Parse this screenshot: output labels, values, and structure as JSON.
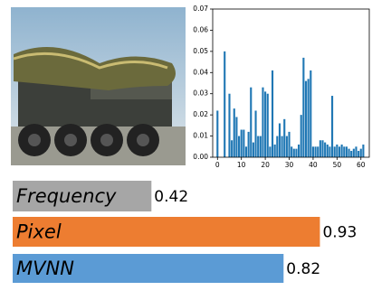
{
  "chart_data": [
    {
      "type": "bar",
      "color": "#1f77b4",
      "x": [
        0,
        1,
        2,
        3,
        4,
        5,
        6,
        7,
        8,
        9,
        10,
        11,
        12,
        13,
        14,
        15,
        16,
        17,
        18,
        19,
        20,
        21,
        22,
        23,
        24,
        25,
        26,
        27,
        28,
        29,
        30,
        31,
        32,
        33,
        34,
        35,
        36,
        37,
        38,
        39,
        40,
        41,
        42,
        43,
        44,
        45,
        46,
        47,
        48,
        49,
        50,
        51,
        52,
        53,
        54,
        55,
        56,
        57,
        58,
        59,
        60,
        61
      ],
      "values": [
        0.022,
        0,
        0,
        0.05,
        0,
        0.03,
        0.008,
        0.023,
        0.019,
        0.01,
        0.013,
        0.013,
        0.005,
        0.012,
        0.033,
        0.007,
        0.022,
        0.01,
        0.01,
        0.033,
        0.031,
        0.03,
        0.005,
        0.041,
        0.006,
        0.01,
        0.016,
        0.01,
        0.018,
        0.01,
        0.012,
        0.005,
        0.004,
        0.004,
        0.006,
        0.02,
        0.047,
        0.036,
        0.037,
        0.041,
        0.005,
        0.005,
        0.005,
        0.008,
        0.008,
        0.007,
        0.006,
        0.005,
        0.029,
        0.005,
        0.006,
        0.005,
        0.006,
        0.005,
        0.005,
        0.004,
        0.003,
        0.004,
        0.005,
        0.003,
        0.004,
        0.006
      ],
      "xlim": [
        -2,
        63.5
      ],
      "ylim": [
        0,
        0.07
      ],
      "xticks": [
        0,
        10,
        20,
        30,
        40,
        50,
        60
      ],
      "yticks": [
        {
          "value": 0,
          "label": "0.00"
        },
        {
          "value": 0.01,
          "label": "0.01"
        },
        {
          "value": 0.02,
          "label": "0.02"
        },
        {
          "value": 0.03,
          "label": "0.03"
        },
        {
          "value": 0.04,
          "label": "0.04"
        },
        {
          "value": 0.05,
          "label": "0.05"
        },
        {
          "value": 0.06,
          "label": "0.06"
        },
        {
          "value": 0.07,
          "label": "0.07"
        }
      ]
    },
    {
      "type": "hbar",
      "categories": [
        "Frequency",
        "Pixel",
        "MVNN"
      ],
      "values": [
        0.42,
        0.93,
        0.82
      ],
      "colors": [
        "#a6a6a6",
        "#ed7d31",
        "#5b9bd5"
      ],
      "xlim": [
        0,
        1
      ]
    }
  ]
}
